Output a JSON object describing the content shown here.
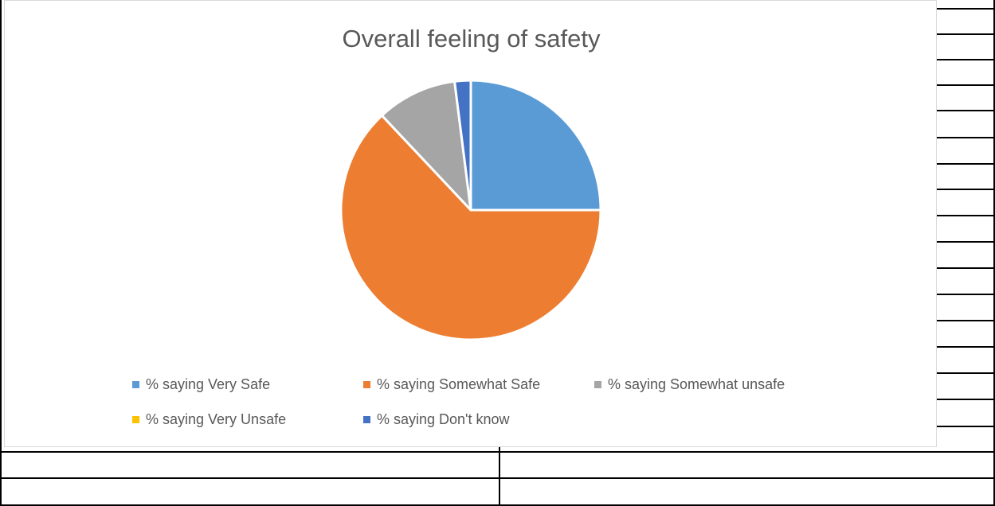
{
  "chart_data": {
    "type": "pie",
    "title": "Overall feeling of safety",
    "categories": [
      "% saying Very Safe",
      "% saying Somewhat Safe",
      "% saying Somewhat unsafe",
      "% saying Very Unsafe",
      "% saying Don't know"
    ],
    "values": [
      25,
      63,
      10,
      0,
      2
    ],
    "colors": [
      "#5b9bd5",
      "#ed7d31",
      "#a5a5a5",
      "#ffc000",
      "#4472c4"
    ],
    "start_angle_deg": 0,
    "direction": "clockwise",
    "legend_position": "bottom"
  }
}
